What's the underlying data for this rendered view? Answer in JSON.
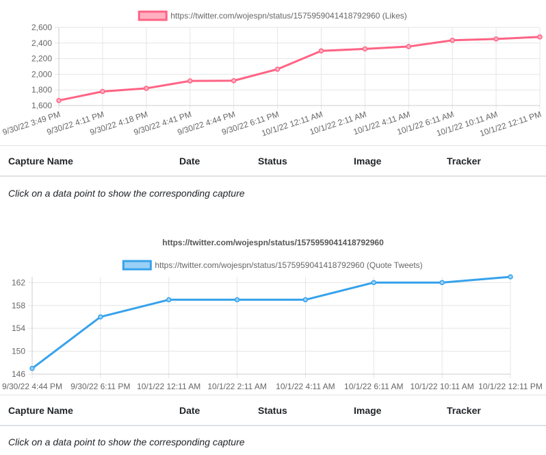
{
  "charts": [
    {
      "chart_data": {
        "type": "line",
        "title": "",
        "x": [
          "9/30/22 3:49 PM",
          "9/30/22 4:11 PM",
          "9/30/22 4:18 PM",
          "9/30/22 4:41 PM",
          "9/30/22 4:44 PM",
          "9/30/22 6:11 PM",
          "10/1/22 12:11 AM",
          "10/1/22 2:11 AM",
          "10/1/22 4:11 AM",
          "10/1/22 6:11 AM",
          "10/1/22 10:11 AM",
          "10/1/22 12:11 PM"
        ],
        "series": [
          {
            "name": "https://twitter.com/wojespn/status/1575959041418792960 (Likes)",
            "values": [
              1665,
              1780,
              1820,
              1915,
              1918,
              2065,
              2300,
              2325,
              2355,
              2435,
              2452,
              2478
            ],
            "color": "#ff6384",
            "fill": "#ffb1c1"
          }
        ],
        "ylim": [
          1600,
          2600
        ],
        "yticks": [
          1600,
          1800,
          2000,
          2200,
          2400,
          2600
        ],
        "ytick_labels": [
          "1,600",
          "1,800",
          "2,000",
          "2,200",
          "2,400",
          "2,600"
        ],
        "xtick_rotation": "rotated",
        "legend_position": "top",
        "grid": true
      },
      "table": {
        "headers": [
          "Capture Name",
          "Date",
          "Status",
          "Image",
          "Tracker"
        ],
        "hint": "Click on a data point to show the corresponding capture"
      }
    },
    {
      "chart_data": {
        "type": "line",
        "title": "https://twitter.com/wojespn/status/1575959041418792960",
        "x": [
          "9/30/22 4:44 PM",
          "9/30/22 6:11 PM",
          "10/1/22 12:11 AM",
          "10/1/22 2:11 AM",
          "10/1/22 4:11 AM",
          "10/1/22 6:11 AM",
          "10/1/22 10:11 AM",
          "10/1/22 12:11 PM"
        ],
        "series": [
          {
            "name": "https://twitter.com/wojespn/status/1575959041418792960 (Quote Tweets)",
            "values": [
              147,
              156,
              159,
              159,
              159,
              162,
              162,
              163
            ],
            "color": "#36a2eb",
            "fill": "#9ad0f5"
          }
        ],
        "ylim": [
          146,
          163
        ],
        "yticks": [
          146,
          150,
          154,
          158,
          162
        ],
        "ytick_labels": [
          "146",
          "150",
          "154",
          "158",
          "162"
        ],
        "xtick_rotation": "horizontal",
        "legend_position": "top",
        "grid": true
      },
      "table": {
        "headers": [
          "Capture Name",
          "Date",
          "Status",
          "Image",
          "Tracker"
        ],
        "hint": "Click on a data point to show the corresponding capture"
      }
    }
  ]
}
